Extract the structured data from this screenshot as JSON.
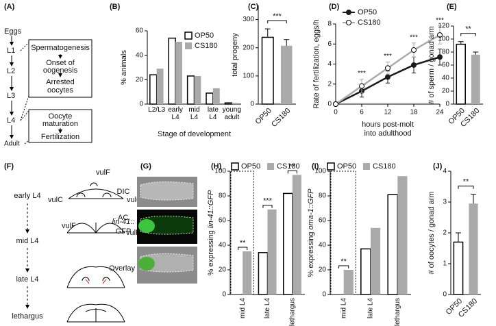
{
  "diagram_a": {
    "label": "(A)",
    "stages": [
      "Eggs",
      "L1",
      "L2",
      "L3",
      "L4",
      "Adult"
    ],
    "box1": [
      "Spermatogenesis",
      "Onset of",
      "oogenesis",
      "Arrested",
      "oocytes"
    ],
    "box2": [
      "Oocyte",
      "maturation",
      "Fertilization"
    ]
  },
  "diagram_f": {
    "label": "(F)",
    "stages": [
      "early L4",
      "mid L4",
      "late L4",
      "lethargus"
    ],
    "cells": [
      "vulF",
      "vulC",
      "vulC",
      "vulF",
      "AC",
      "vulF"
    ]
  },
  "images_g": {
    "label": "(G)",
    "rows": [
      "DIC",
      "lin-41::",
      "GFP",
      "Overlay"
    ]
  },
  "chart_data": [
    {
      "label": "(B)",
      "type": "bar",
      "categories": [
        "L2/L3",
        "early L4",
        "mid L4",
        "late L4",
        "young adult"
      ],
      "series": [
        {
          "name": "OP50",
          "color": "#ffffff",
          "values": [
            24,
            54,
            23,
            9,
            1
          ]
        },
        {
          "name": "CS180",
          "color": "#aaaaaa",
          "values": [
            29,
            51,
            23,
            13,
            1
          ]
        }
      ],
      "ylabel": "% animals",
      "xlabel": "Stage of development",
      "ylim": [
        0,
        60
      ],
      "yticks": [
        0,
        20,
        40,
        60
      ]
    },
    {
      "label": "(C)",
      "type": "bar",
      "categories": [
        "OP50",
        "CS180"
      ],
      "values": [
        237,
        207
      ],
      "errors": [
        30,
        22
      ],
      "colors": [
        "#ffffff",
        "#aaaaaa"
      ],
      "ylabel": "total progeny",
      "ylim": [
        0,
        350
      ],
      "yticks": [
        0,
        100,
        200,
        300
      ],
      "significance": "***"
    },
    {
      "label": "(D)",
      "type": "line",
      "x": [
        0,
        6,
        12,
        18,
        24
      ],
      "series": [
        {
          "name": "OP50",
          "color": "#1a1a1a",
          "values": [
            0,
            1.3,
            2.7,
            3.9,
            4.7
          ],
          "errors": [
            0,
            0.6,
            0.6,
            0.8,
            0.8
          ]
        },
        {
          "name": "CS180",
          "color": "#aaaaaa",
          "values": [
            0,
            1.8,
            3.6,
            5.4,
            6.9
          ],
          "errors": [
            0,
            0.7,
            0.6,
            0.7,
            0.9
          ]
        }
      ],
      "ylabel": "Rate of fertilization, eggs/h",
      "xlabel": [
        "hours post-molt",
        "into adulthood"
      ],
      "xlim": [
        0,
        24
      ],
      "xticks": [
        0,
        6,
        12,
        18,
        24
      ],
      "ylim": [
        0,
        8
      ],
      "yticks": [
        0,
        2,
        4,
        6,
        8
      ],
      "significance": [
        null,
        "***",
        "***",
        "***",
        "***"
      ]
    },
    {
      "label": "(E)",
      "type": "bar",
      "categories": [
        "OP50",
        "CS180"
      ],
      "values": [
        92,
        76
      ],
      "errors": [
        4,
        4
      ],
      "colors": [
        "#ffffff",
        "#aaaaaa"
      ],
      "ylabel": "# of sperm / gonad arm",
      "ylim": [
        0,
        120
      ],
      "yticks": [
        0,
        20,
        40,
        60,
        80,
        100,
        120
      ],
      "significance": "**"
    },
    {
      "label": "(H)",
      "type": "bar",
      "categories": [
        "mid L4",
        "late L4",
        "lethargus"
      ],
      "series": [
        {
          "name": "OP50",
          "color": "#ffffff",
          "values": [
            0,
            34,
            82
          ]
        },
        {
          "name": "CS180",
          "color": "#aaaaaa",
          "values": [
            35,
            69,
            97
          ]
        }
      ],
      "ylabel": [
        "% expressing ",
        "lin-41::GFP"
      ],
      "ylim": [
        0,
        100
      ],
      "yticks": [
        0,
        20,
        40,
        60,
        80,
        100
      ],
      "significance": [
        "**",
        "***",
        "**"
      ]
    },
    {
      "label": "(I)",
      "type": "bar",
      "categories": [
        "mid L4",
        "late L4",
        "lethargus"
      ],
      "series": [
        {
          "name": "OP50",
          "color": "#ffffff",
          "values": [
            0,
            37,
            81
          ]
        },
        {
          "name": "CS180",
          "color": "#aaaaaa",
          "values": [
            20,
            54,
            96
          ]
        }
      ],
      "ylabel": [
        "% expressing ",
        "oma-1::GFP"
      ],
      "ylim": [
        0,
        100
      ],
      "yticks": [
        0,
        20,
        40,
        60,
        80,
        100
      ],
      "significance": [
        "**",
        null,
        null
      ]
    },
    {
      "label": "(J)",
      "type": "bar",
      "categories": [
        "OP50",
        "CS180"
      ],
      "values": [
        1.7,
        2.95
      ],
      "errors": [
        0.3,
        0.3
      ],
      "colors": [
        "#ffffff",
        "#aaaaaa"
      ],
      "ylabel": "# of oocytes / gonad arm",
      "ylim": [
        0,
        4
      ],
      "yticks": [
        0,
        1,
        2,
        3,
        4
      ],
      "significance": "**"
    }
  ]
}
